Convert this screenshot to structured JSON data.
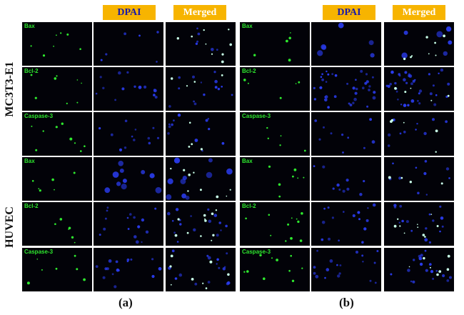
{
  "headers": {
    "dapi": "DPAI",
    "merged": "Merged"
  },
  "row_groups": [
    "MC3T3-E1",
    "HUVEC"
  ],
  "markers": [
    "Bax",
    "Bcl-2",
    "Caspase-3",
    "Bax",
    "Bcl-2",
    "Caspase-3"
  ],
  "panels": [
    {
      "label": "(a)"
    },
    {
      "label": "(b)"
    }
  ],
  "colors": {
    "green_marker": "#2ee82e",
    "dapi_blue": "#2a3cf0",
    "header_bg": "#f7b400",
    "header_text": "#1a1aa8"
  }
}
